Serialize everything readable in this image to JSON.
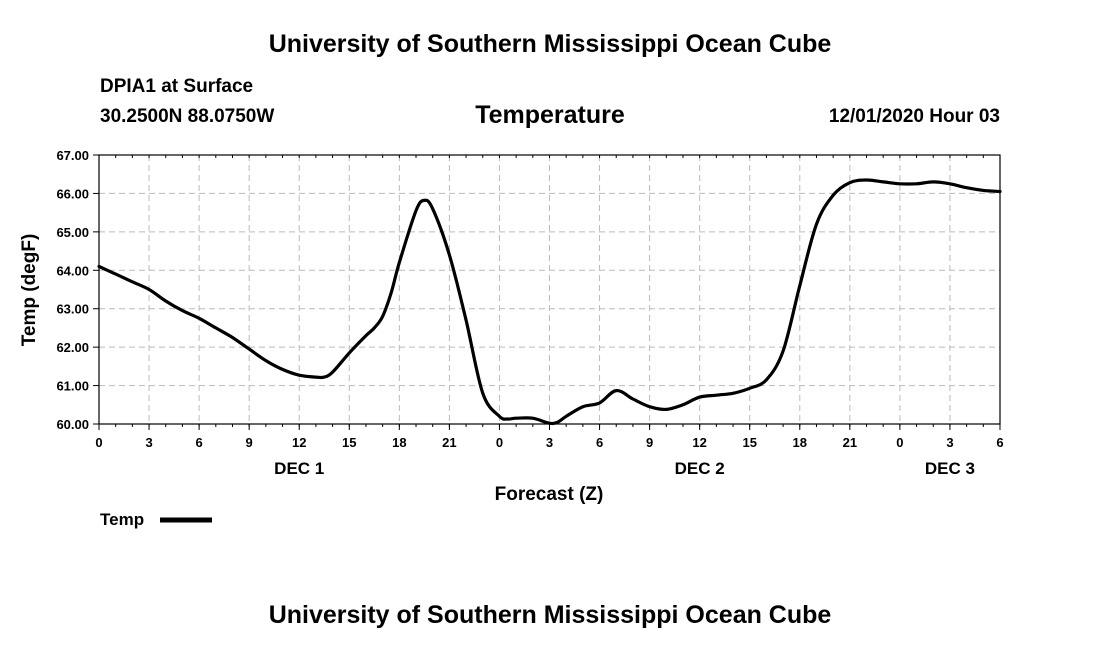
{
  "header": {
    "title": "University of Southern Mississippi Ocean Cube",
    "station_name": "DPIA1 at Surface",
    "station_coords": "30.2500N 88.0750W",
    "chart_title": "Temperature",
    "run_time": "12/01/2020 Hour 03"
  },
  "footer": {
    "title": "University of Southern Mississippi Ocean Cube"
  },
  "legend": {
    "label": "Temp"
  },
  "chart_data": {
    "type": "line",
    "title": "Temperature",
    "xlabel": "Forecast (Z)",
    "ylabel": "Temp (degF)",
    "ylim": [
      60.0,
      67.0
    ],
    "xlim": [
      0,
      54
    ],
    "grid": true,
    "line_color": "#000000",
    "grid_color": "#bbbbbb",
    "y_ticks": [
      "60.00",
      "61.00",
      "62.00",
      "63.00",
      "64.00",
      "65.00",
      "66.00",
      "67.00"
    ],
    "x_ticks": [
      "0",
      "3",
      "6",
      "9",
      "12",
      "15",
      "18",
      "21",
      "0",
      "3",
      "6",
      "9",
      "12",
      "15",
      "18",
      "21",
      "0",
      "3",
      "6"
    ],
    "day_labels": [
      {
        "label": "DEC 1",
        "hour": 12
      },
      {
        "label": "DEC 2",
        "hour": 36
      },
      {
        "label": "DEC 3",
        "hour": 51
      }
    ],
    "series": [
      {
        "name": "Temp",
        "x": [
          0,
          1,
          2,
          3,
          4,
          5,
          6,
          7,
          8,
          9,
          10,
          11,
          12,
          13,
          13.5,
          14,
          15,
          16,
          16.5,
          17,
          17.5,
          18,
          19,
          19.5,
          20,
          21,
          22,
          23,
          24,
          24.5,
          25,
          26,
          27,
          27.5,
          28,
          29,
          30,
          31,
          32,
          33,
          34,
          35,
          36,
          37,
          38,
          39,
          40,
          41,
          42,
          43,
          44,
          45,
          46,
          47,
          48,
          49,
          50,
          51,
          52,
          53,
          54
        ],
        "values": [
          64.1,
          63.9,
          63.7,
          63.5,
          63.2,
          62.95,
          62.75,
          62.5,
          62.25,
          61.95,
          61.65,
          61.42,
          61.27,
          61.22,
          61.22,
          61.35,
          61.85,
          62.3,
          62.5,
          62.8,
          63.4,
          64.2,
          65.55,
          65.82,
          65.6,
          64.4,
          62.7,
          60.8,
          60.2,
          60.13,
          60.15,
          60.15,
          60.02,
          60.05,
          60.2,
          60.45,
          60.55,
          60.87,
          60.65,
          60.45,
          60.38,
          60.5,
          60.7,
          60.75,
          60.8,
          60.93,
          61.15,
          61.9,
          63.6,
          65.2,
          65.95,
          66.28,
          66.35,
          66.3,
          66.25,
          66.25,
          66.3,
          66.25,
          66.15,
          66.08,
          66.05
        ]
      }
    ]
  }
}
